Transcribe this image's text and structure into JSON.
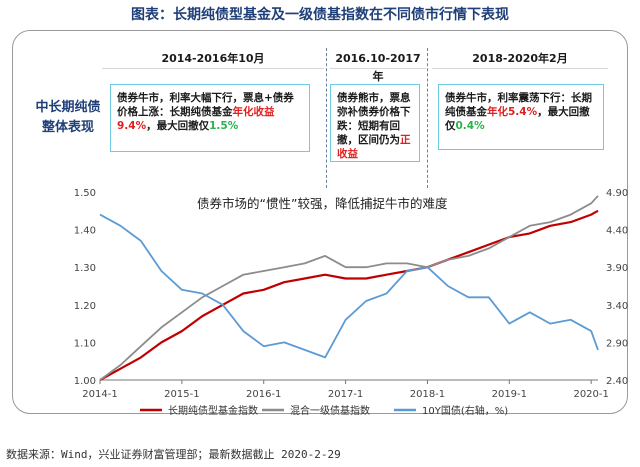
{
  "title": "图表：长期纯债型基金及一级债基指数在不同债市行情下表现",
  "row_label_line1": "中长期纯债",
  "row_label_line2": "整体表现",
  "periods": [
    "2014-2016年10月",
    "2016.10-2017年",
    "2018-2020年2月"
  ],
  "callouts": {
    "c1_a": "债券牛市，利率大幅下行，票息+债券价格上涨：长期纯债基金",
    "c1_b": "年化收益",
    "c1_c": "9.4%",
    "c1_d": "，最大回撤仅",
    "c1_e": "1.5%",
    "c2_a": "债券熊市，票息弥补债券价格下跌：短期有回撤，区间仍为",
    "c2_b": "正收益",
    "c3_a": "债券牛市，利率震荡下行：长期纯债基金",
    "c3_b": "年化5.4%",
    "c3_c": "，最大回撤仅",
    "c3_d": "0.4%"
  },
  "annotation": "债券市场的“惯性”较强，降低捕捉牛市的难度",
  "source": "数据来源：Wind，兴业证券财富管理部；最新数据截止 2020-2-29",
  "colors": {
    "red": "#c00000",
    "gray": "#8c8c8c",
    "blue": "#5b9bd5",
    "title": "#1f3f78"
  },
  "chart_data": {
    "type": "line",
    "x_ticks": [
      "2014-1",
      "2015-1",
      "2016-1",
      "2017-1",
      "2018-1",
      "2019-1",
      "2020-1"
    ],
    "y_left_ticks": [
      "1.50",
      "1.40",
      "1.30",
      "1.20",
      "1.10",
      "1.00"
    ],
    "y_left_lim": [
      1.0,
      1.5
    ],
    "y_right_ticks": [
      "4.90",
      "4.40",
      "3.90",
      "3.40",
      "2.90",
      "2.40"
    ],
    "y_right_lim": [
      2.4,
      4.9
    ],
    "x_range": [
      "2014-01",
      "2020-02"
    ],
    "series": [
      {
        "name": "长期纯债型基金指数",
        "axis": "left",
        "color": "#c00000",
        "x": [
          "2014-01",
          "2014-04",
          "2014-07",
          "2014-10",
          "2015-01",
          "2015-04",
          "2015-07",
          "2015-10",
          "2016-01",
          "2016-04",
          "2016-07",
          "2016-10",
          "2017-01",
          "2017-04",
          "2017-07",
          "2017-10",
          "2018-01",
          "2018-04",
          "2018-07",
          "2018-10",
          "2019-01",
          "2019-04",
          "2019-07",
          "2019-10",
          "2020-01",
          "2020-02"
        ],
        "values": [
          1.0,
          1.03,
          1.06,
          1.1,
          1.13,
          1.17,
          1.2,
          1.23,
          1.24,
          1.26,
          1.27,
          1.28,
          1.27,
          1.27,
          1.28,
          1.29,
          1.3,
          1.32,
          1.34,
          1.36,
          1.38,
          1.39,
          1.41,
          1.42,
          1.44,
          1.45
        ]
      },
      {
        "name": "混合一级债基指数",
        "axis": "left",
        "color": "#8c8c8c",
        "x": [
          "2014-01",
          "2014-04",
          "2014-07",
          "2014-10",
          "2015-01",
          "2015-04",
          "2015-07",
          "2015-10",
          "2016-01",
          "2016-04",
          "2016-07",
          "2016-10",
          "2017-01",
          "2017-04",
          "2017-07",
          "2017-10",
          "2018-01",
          "2018-04",
          "2018-07",
          "2018-10",
          "2019-01",
          "2019-04",
          "2019-07",
          "2019-10",
          "2020-01",
          "2020-02"
        ],
        "values": [
          1.0,
          1.04,
          1.09,
          1.14,
          1.18,
          1.22,
          1.25,
          1.28,
          1.29,
          1.3,
          1.31,
          1.33,
          1.3,
          1.3,
          1.31,
          1.31,
          1.3,
          1.32,
          1.33,
          1.35,
          1.38,
          1.41,
          1.42,
          1.44,
          1.47,
          1.49
        ]
      },
      {
        "name": "10Y国债(右轴，%)",
        "axis": "right",
        "color": "#5b9bd5",
        "x": [
          "2014-01",
          "2014-04",
          "2014-07",
          "2014-10",
          "2015-01",
          "2015-04",
          "2015-07",
          "2015-10",
          "2016-01",
          "2016-04",
          "2016-07",
          "2016-10",
          "2017-01",
          "2017-04",
          "2017-07",
          "2017-10",
          "2018-01",
          "2018-04",
          "2018-07",
          "2018-10",
          "2019-01",
          "2019-04",
          "2019-07",
          "2019-10",
          "2020-01",
          "2020-02"
        ],
        "values": [
          4.6,
          4.45,
          4.25,
          3.85,
          3.6,
          3.55,
          3.4,
          3.05,
          2.85,
          2.9,
          2.8,
          2.7,
          3.2,
          3.45,
          3.55,
          3.85,
          3.9,
          3.65,
          3.5,
          3.5,
          3.15,
          3.3,
          3.15,
          3.2,
          3.05,
          2.8
        ]
      }
    ]
  }
}
